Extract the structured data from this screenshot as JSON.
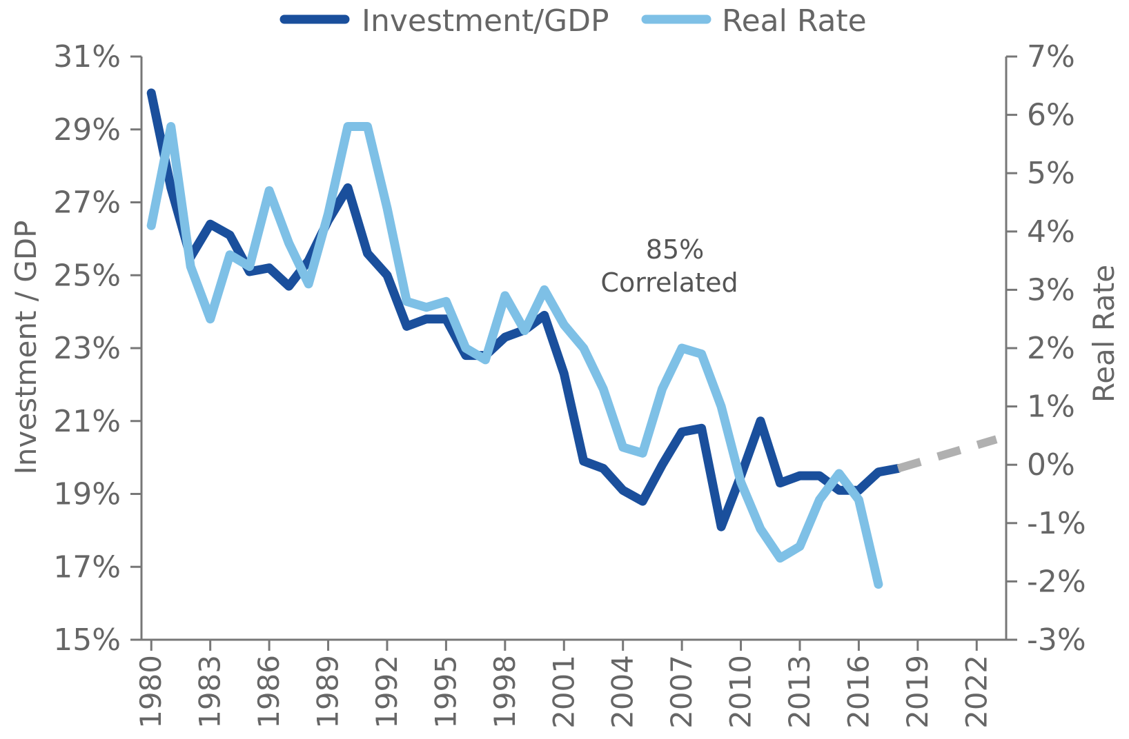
{
  "chart_data": {
    "type": "line",
    "annotation": [
      "85%",
      "Correlated"
    ],
    "ylabel_left": "Investment / GDP",
    "ylabel_right": "Real Rate",
    "ylim_left": [
      15,
      31
    ],
    "ylim_right": [
      -3,
      7
    ],
    "y_ticks_left": [
      "15%",
      "17%",
      "19%",
      "21%",
      "23%",
      "25%",
      "27%",
      "29%",
      "31%"
    ],
    "y_ticks_right": [
      "-3%",
      "-2%",
      "-1%",
      "0%",
      "1%",
      "2%",
      "3%",
      "4%",
      "5%",
      "6%",
      "7%"
    ],
    "x_ticks": [
      "1980",
      "1983",
      "1986",
      "1989",
      "1992",
      "1995",
      "1998",
      "2001",
      "2004",
      "2007",
      "2010",
      "2013",
      "2016",
      "2019",
      "2022"
    ],
    "xlim": [
      1979.5,
      2023.5
    ],
    "legend": {
      "position": "top-center",
      "entries": [
        "Investment/GDP",
        "Real Rate"
      ]
    },
    "series": [
      {
        "name": "Investment/GDP",
        "axis": "left",
        "color": "#1A4F9C",
        "x": [
          1980,
          1981,
          1982,
          1983,
          1984,
          1985,
          1986,
          1987,
          1988,
          1989,
          1990,
          1991,
          1992,
          1993,
          1994,
          1995,
          1996,
          1997,
          1998,
          1999,
          2000,
          2001,
          2002,
          2003,
          2004,
          2005,
          2006,
          2007,
          2008,
          2009,
          2010,
          2011,
          2012,
          2013,
          2014,
          2015,
          2016,
          2017,
          2018
        ],
        "values": [
          30.0,
          27.4,
          25.5,
          26.4,
          26.1,
          25.1,
          25.2,
          24.7,
          25.4,
          26.5,
          27.4,
          25.6,
          25.0,
          23.6,
          23.8,
          23.8,
          22.8,
          22.8,
          23.3,
          23.5,
          23.9,
          22.3,
          19.9,
          19.7,
          19.1,
          18.8,
          19.8,
          20.7,
          20.8,
          18.1,
          19.5,
          21.0,
          19.3,
          19.5,
          19.5,
          19.1,
          19.1,
          19.6,
          19.7
        ]
      },
      {
        "name": "Real Rate",
        "axis": "right",
        "color": "#7EC0E6",
        "x": [
          1980,
          1981,
          1982,
          1983,
          1984,
          1985,
          1986,
          1987,
          1988,
          1989,
          1990,
          1991,
          1992,
          1993,
          1994,
          1995,
          1996,
          1997,
          1998,
          1999,
          2000,
          2001,
          2002,
          2003,
          2004,
          2005,
          2006,
          2007,
          2008,
          2009,
          2010,
          2011,
          2012,
          2013,
          2014,
          2015,
          2016,
          2017
        ],
        "values": [
          4.1,
          5.8,
          3.4,
          2.5,
          3.6,
          3.4,
          4.7,
          3.8,
          3.1,
          4.3,
          5.8,
          5.8,
          4.4,
          2.8,
          2.7,
          2.8,
          2.0,
          1.8,
          2.9,
          2.3,
          3.0,
          2.4,
          2.0,
          1.3,
          0.3,
          0.2,
          1.3,
          2.0,
          1.9,
          1.0,
          -0.3,
          -1.1,
          -1.6,
          -1.4,
          -0.6,
          -0.15,
          -0.6,
          -2.05
        ]
      },
      {
        "name": "",
        "axis": "left",
        "color": "#B0B0B0",
        "dashed": true,
        "x": [
          2018,
          2023
        ],
        "values": [
          19.7,
          20.5
        ]
      }
    ]
  }
}
